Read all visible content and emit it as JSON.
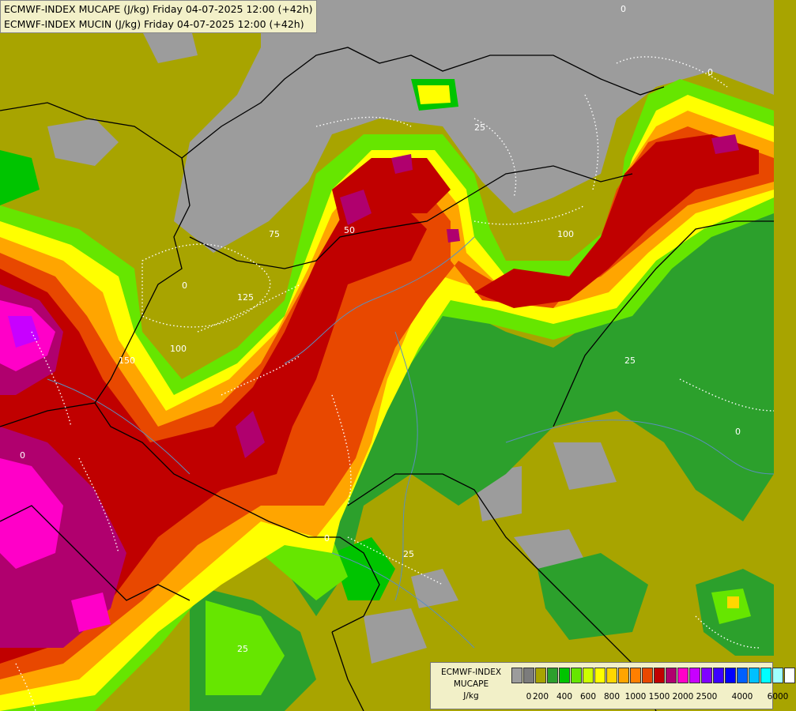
{
  "title": {
    "line1": "ECMWF-INDEX MUCAPE (J/kg) Friday 04-07-2025 12:00 (+42h)",
    "line2": "ECMWF-INDEX MUCIN (J/kg) Friday 04-07-2025 12:00 (+42h)"
  },
  "contour_labels": [
    "0",
    "25",
    "50",
    "75",
    "100",
    "125",
    "150"
  ],
  "legend": {
    "title_line1": "ECMWF-INDEX",
    "title_line2": "MUCAPE",
    "title_line3": "J/kg",
    "colors": [
      "#9c9c9c",
      "#7c7c7c",
      "#a8a400",
      "#2ca02c",
      "#00c400",
      "#66e600",
      "#ccff00",
      "#ffff00",
      "#ffd700",
      "#ffa500",
      "#ff7f00",
      "#e84800",
      "#c00000",
      "#b0006e",
      "#ff00c8",
      "#c800ff",
      "#8000ff",
      "#3c00ff",
      "#0000ff",
      "#0060ff",
      "#00c0ff",
      "#00ffff",
      "#a0ffff",
      "#ffffff"
    ],
    "tick_labels": [
      "0",
      "200",
      "400",
      "600",
      "800",
      "1000",
      "1500",
      "2000",
      "2500",
      "4000",
      "6000"
    ]
  }
}
